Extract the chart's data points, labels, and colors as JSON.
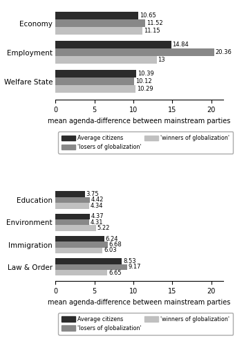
{
  "chart_a": {
    "categories": [
      "Welfare State",
      "Employment",
      "Economy"
    ],
    "avg_citizens": [
      10.39,
      14.84,
      10.65
    ],
    "losers": [
      10.12,
      20.36,
      11.52
    ],
    "winners": [
      10.29,
      13,
      11.15
    ],
    "labels_avg": [
      "10.39",
      "14.84",
      "10.65"
    ],
    "labels_los": [
      "10.12",
      "20.36",
      "11.52"
    ],
    "labels_win": [
      "10.29",
      "13",
      "11.15"
    ],
    "xlim": [
      0,
      21.5
    ],
    "xticks": [
      0,
      5,
      10,
      15,
      20
    ],
    "xlabel": "mean agenda-difference between mainstream parties"
  },
  "chart_b": {
    "categories": [
      "Law & Order",
      "Immigration",
      "Environment",
      "Education"
    ],
    "avg_citizens": [
      8.53,
      6.24,
      4.37,
      3.75
    ],
    "losers": [
      9.17,
      6.68,
      4.31,
      4.42
    ],
    "winners": [
      6.65,
      6.03,
      5.22,
      4.34
    ],
    "labels_avg": [
      "8.53",
      "6.24",
      "4.37",
      "3.75"
    ],
    "labels_los": [
      "9.17",
      "6.68",
      "4.31",
      "4.42"
    ],
    "labels_win": [
      "6.65",
      "6.03",
      "5.22",
      "4.34"
    ],
    "xlim": [
      0,
      21.5
    ],
    "xticks": [
      0,
      5,
      10,
      15,
      20
    ],
    "xlabel": "mean agenda-difference between mainstream parties"
  },
  "colors": {
    "avg_citizens": "#2b2b2b",
    "losers": "#888888",
    "winners": "#c0c0c0"
  },
  "legend_labels": {
    "avg_citizens": "Average citizens",
    "losers": "'losers of globalization'",
    "winners": "'winners of globalization'"
  },
  "bar_height": 0.26,
  "label_fontsize": 6.0,
  "tick_fontsize": 7,
  "axis_label_fontsize": 7,
  "category_fontsize": 7.5
}
